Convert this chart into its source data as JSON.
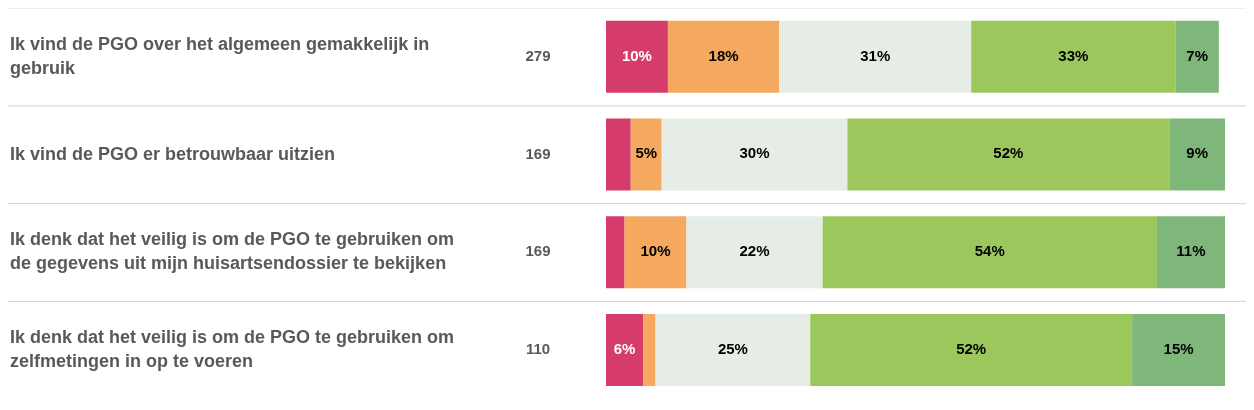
{
  "chart_data": {
    "type": "bar",
    "orientation": "horizontal",
    "stacked": true,
    "categories": [
      "Ik vind de PGO over het algemeen gemakkelijk in gebruik",
      "Ik vind de PGO er betrouwbaar uitzien",
      "Ik denk dat het veilig is om de PGO te gebruiken om de gegevens uit mijn huisartsendossier te bekijken",
      "Ik denk dat het veilig is om de PGO te gebruiken om zelfmetingen in op te voeren"
    ],
    "series": [
      {
        "color": "#d63c6b",
        "values": [
          10,
          4,
          3,
          6
        ],
        "value_labels": [
          "10%",
          null,
          null,
          "6%"
        ]
      },
      {
        "color": "#f4a95e",
        "values": [
          18,
          5,
          10,
          2
        ],
        "value_labels": [
          "18%",
          "5%",
          "10%",
          null
        ]
      },
      {
        "color": "#e6ede6",
        "values": [
          31,
          30,
          22,
          25
        ],
        "value_labels": [
          "31%",
          "30%",
          "22%",
          "25%"
        ]
      },
      {
        "color": "#9cc75c",
        "values": [
          33,
          52,
          54,
          52
        ],
        "value_labels": [
          "33%",
          "52%",
          "54%",
          "52%"
        ]
      },
      {
        "color": "#7fb77a",
        "values": [
          7,
          9,
          11,
          15
        ],
        "value_labels": [
          "7%",
          "9%",
          "11%",
          "15%"
        ]
      }
    ],
    "xlim": [
      0,
      100
    ],
    "legend": false,
    "tick_labels": "y",
    "annotations": [
      "279",
      "169",
      "169",
      "110"
    ]
  }
}
